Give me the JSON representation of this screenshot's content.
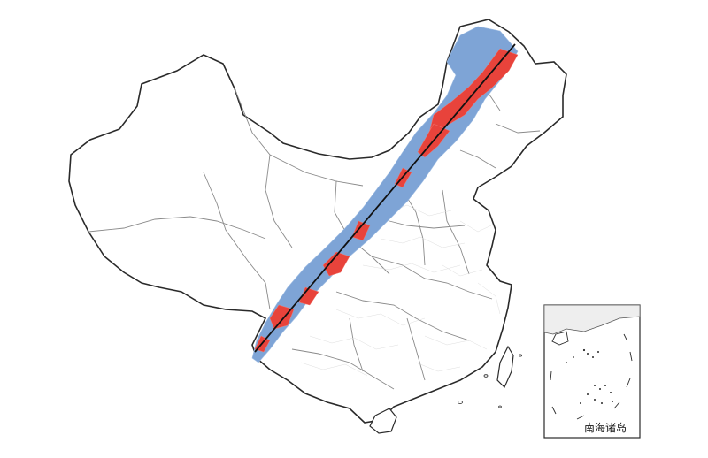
{
  "map": {
    "inset_label": "南海诸岛",
    "colors": {
      "background": "#ffffff",
      "country_outline": "#2a2a2a",
      "province_border": "#8a8a8a",
      "county_border": "#d6d6d6",
      "belt_outer": "#7ea4d6",
      "belt_core": "#e8433b",
      "axis_line": "#111111"
    }
  }
}
